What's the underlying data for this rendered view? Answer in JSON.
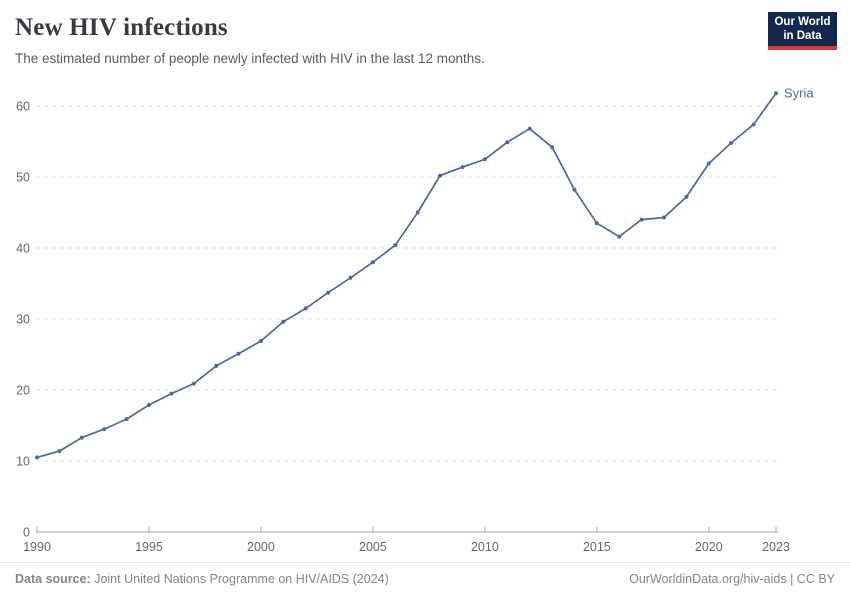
{
  "header": {
    "title": "New HIV infections",
    "subtitle": "The estimated number of people newly infected with HIV in the last 12 months.",
    "logo": {
      "line1": "Our World",
      "line2": "in Data"
    }
  },
  "chart_data": {
    "type": "line",
    "title": "New HIV infections",
    "xlabel": "",
    "ylabel": "",
    "xlim": [
      1990,
      2023
    ],
    "ylim": [
      0,
      65
    ],
    "x_ticks": [
      1990,
      1995,
      2000,
      2005,
      2010,
      2015,
      2020,
      2023
    ],
    "y_ticks": [
      0,
      10,
      20,
      30,
      40,
      50,
      60
    ],
    "grid": "horizontal-dashed",
    "legend_position": "end-of-line-label",
    "series": [
      {
        "name": "Syria",
        "color": "#4c6a9c",
        "x": [
          1990,
          1991,
          1992,
          1993,
          1994,
          1995,
          1996,
          1997,
          1998,
          1999,
          2000,
          2001,
          2002,
          2003,
          2004,
          2005,
          2006,
          2007,
          2008,
          2009,
          2010,
          2011,
          2012,
          2013,
          2014,
          2015,
          2016,
          2017,
          2018,
          2019,
          2020,
          2021,
          2022,
          2023
        ],
        "values": [
          10.5,
          11.4,
          13.3,
          14.5,
          15.9,
          17.9,
          19.5,
          20.9,
          23.4,
          25.1,
          26.9,
          29.6,
          31.5,
          33.7,
          35.8,
          38.0,
          40.4,
          45.0,
          50.2,
          51.4,
          52.5,
          54.9,
          56.8,
          54.2,
          48.2,
          43.5,
          41.6,
          44.0,
          44.3,
          47.2,
          51.9,
          54.8,
          57.4,
          61.8
        ]
      }
    ]
  },
  "footer": {
    "source_label": "Data source:",
    "source_text": " Joint United Nations Programme on HIV/AIDS (2024)",
    "right_text": "OurWorldinData.org/hiv-aids | CC BY"
  },
  "colors": {
    "accent": "#4c6a9c",
    "gridline": "#dcdcdc",
    "axis": "#a1a1a1",
    "tick_mark": "#a8a8a8",
    "logo_bg": "#12294d",
    "logo_red": "#d93a34"
  }
}
